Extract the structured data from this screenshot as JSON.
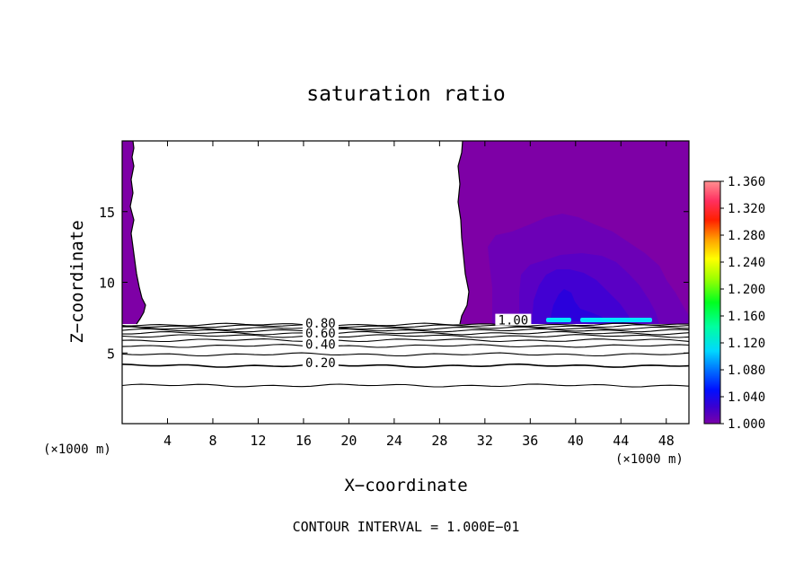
{
  "chart_data": {
    "type": "heatmap",
    "title": "saturation ratio",
    "xlabel": "X−coordinate",
    "ylabel": "Z−coordinate",
    "x_unit": "(×1000 m)",
    "z_unit": "(×1000 m)",
    "footer": "CONTOUR INTERVAL = 1.000E−01",
    "xlim": [
      0,
      50
    ],
    "ylim": [
      0,
      20
    ],
    "x_ticks": [
      4,
      8,
      12,
      16,
      20,
      24,
      28,
      32,
      36,
      40,
      44,
      48
    ],
    "y_ticks": [
      5,
      10,
      15
    ],
    "colorbar": {
      "min": 1.0,
      "max": 1.36,
      "labels": [
        "1.360",
        "1.320",
        "1.280",
        "1.240",
        "1.200",
        "1.160",
        "1.120",
        "1.080",
        "1.040",
        "1.000"
      ]
    },
    "contour_labels": [
      {
        "text": "0.20",
        "x": 17.5,
        "z": 4.2
      },
      {
        "text": "0.40",
        "x": 17.5,
        "z": 5.5
      },
      {
        "text": "0.60",
        "x": 17.5,
        "z": 6.3
      },
      {
        "text": "0.80",
        "x": 17.5,
        "z": 7.0
      },
      {
        "text": "1.00",
        "x": 34.5,
        "z": 7.2
      }
    ],
    "contour_levels_z": [
      2.7,
      4.1,
      4.9,
      5.5,
      5.9,
      6.2,
      6.4,
      6.6,
      6.75,
      6.9,
      7.0
    ],
    "colors": {
      "violet": "#7e00a6",
      "blue_1": "#6c00b6",
      "blue_2": "#5a00c4",
      "blue_3": "#4200d2",
      "blue_4": "#2a00dc",
      "cyan": "#00e6ff"
    }
  }
}
